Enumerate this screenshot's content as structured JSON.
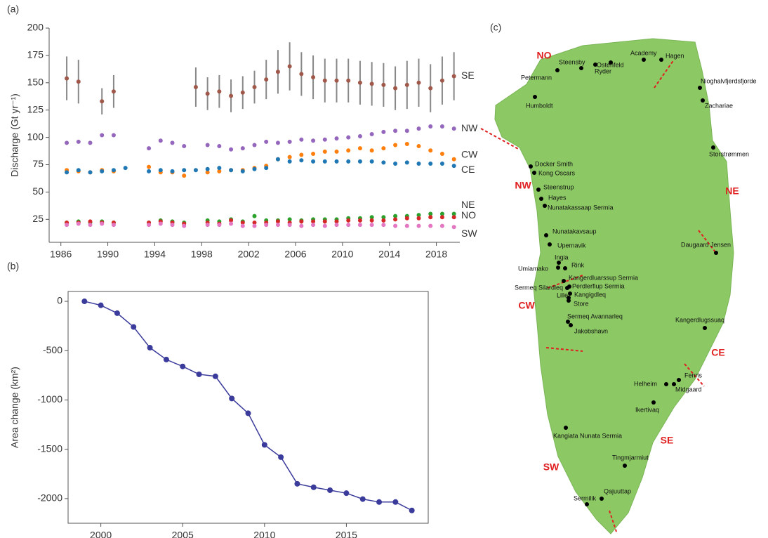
{
  "chart_data": [
    {
      "type": "scatter",
      "panel": "(a)",
      "y_label": "Discharge (Gt yr⁻¹)",
      "x": [
        1986.5,
        1987.5,
        1988.5,
        1989.5,
        1990.5,
        1991.5,
        1993.5,
        1994.5,
        1995.5,
        1996.5,
        1997.5,
        1998.5,
        1999.5,
        2000.5,
        2001.5,
        2002.5,
        2003.5,
        2004.5,
        2005.5,
        2006.5,
        2007.5,
        2008.5,
        2009.5,
        2010.5,
        2011.5,
        2012.5,
        2013.5,
        2014.5,
        2015.5,
        2016.5,
        2017.5,
        2018.5,
        2019.5
      ],
      "series": [
        {
          "name": "SE",
          "color": "#a0584a",
          "values": [
            154,
            151,
            null,
            133,
            142,
            null,
            null,
            null,
            null,
            null,
            146,
            140,
            142,
            138,
            141,
            146,
            153,
            160,
            165,
            158,
            155,
            152,
            152,
            152,
            150,
            149,
            148,
            145,
            148,
            150,
            145,
            152,
            156
          ],
          "errors": [
            20,
            20,
            null,
            12,
            15,
            null,
            null,
            null,
            null,
            null,
            18,
            15,
            15,
            15,
            15,
            15,
            18,
            20,
            22,
            20,
            20,
            20,
            20,
            20,
            20,
            20,
            20,
            20,
            22,
            22,
            22,
            22,
            22
          ]
        },
        {
          "name": "NW",
          "color": "#9467bd",
          "values": [
            95,
            96,
            95,
            102,
            102,
            null,
            90,
            97,
            95,
            92,
            null,
            93,
            92,
            89,
            90,
            93,
            96,
            95,
            96,
            98,
            97,
            98,
            99,
            100,
            101,
            103,
            105,
            106,
            106,
            108,
            110,
            110,
            108
          ]
        },
        {
          "name": "CW",
          "color": "#ff7f0e",
          "values": [
            70,
            69,
            68,
            70,
            69,
            null,
            73,
            68,
            68,
            65,
            null,
            68,
            69,
            70,
            70,
            72,
            74,
            80,
            82,
            84,
            85,
            87,
            87,
            88,
            90,
            88,
            90,
            93,
            94,
            92,
            88,
            85,
            80
          ]
        },
        {
          "name": "CE",
          "color": "#1f77b4",
          "values": [
            68,
            70,
            68,
            69,
            70,
            72,
            69,
            70,
            69,
            70,
            70,
            71,
            72,
            70,
            69,
            71,
            72,
            80,
            78,
            79,
            78,
            78,
            78,
            78,
            78,
            78,
            77,
            76,
            77,
            76,
            76,
            76,
            74
          ]
        },
        {
          "name": "NE",
          "color": "#2ca02c",
          "values": [
            22,
            23,
            22,
            23,
            22,
            null,
            22,
            24,
            23,
            22,
            null,
            24,
            23,
            25,
            23,
            28,
            24,
            24,
            25,
            24,
            25,
            25,
            25,
            26,
            26,
            27,
            27,
            28,
            28,
            29,
            30,
            30,
            30
          ]
        },
        {
          "name": "NO",
          "color": "#d62728",
          "values": [
            22,
            22,
            23,
            22,
            22,
            null,
            22,
            23,
            22,
            21,
            null,
            22,
            21,
            24,
            22,
            22,
            22,
            23,
            22,
            23,
            23,
            23,
            23,
            24,
            24,
            24,
            24,
            25,
            26,
            26,
            27,
            27,
            27
          ]
        },
        {
          "name": "SW",
          "color": "#e377c2",
          "values": [
            20,
            21,
            20,
            21,
            20,
            null,
            20,
            21,
            20,
            19,
            null,
            20,
            20,
            21,
            19,
            19,
            20,
            20,
            20,
            19,
            20,
            19,
            20,
            20,
            20,
            20,
            20,
            19,
            19,
            19,
            19,
            19,
            18
          ]
        }
      ],
      "xlim": [
        1985,
        2020
      ],
      "ylim": [
        4,
        200
      ],
      "xticks": [
        1986,
        1990,
        1994,
        1998,
        2002,
        2006,
        2010,
        2014,
        2018
      ],
      "yticks": [
        25,
        50,
        75,
        100,
        125,
        150,
        175,
        200
      ]
    },
    {
      "type": "line",
      "panel": "(b)",
      "y_label": "Area change (km²)",
      "color": "#3b3b9c",
      "x": [
        1999,
        2000,
        2001,
        2002,
        2003,
        2004,
        2005,
        2006,
        2007,
        2008,
        2009,
        2010,
        2011,
        2012,
        2013,
        2014,
        2015,
        2016,
        2017,
        2018,
        2019
      ],
      "values": [
        0,
        -40,
        -120,
        -260,
        -470,
        -590,
        -660,
        -740,
        -760,
        -985,
        -1135,
        -1455,
        -1580,
        -1850,
        -1885,
        -1915,
        -1945,
        -2005,
        -2035,
        -2035,
        -2120
      ],
      "xlim": [
        1998,
        2020
      ],
      "ylim": [
        -2250,
        100
      ],
      "xticks": [
        2000,
        2005,
        2010,
        2015
      ],
      "yticks": [
        0,
        -500,
        -1000,
        -1500,
        -2000
      ]
    }
  ],
  "map": {
    "panel": "(c)",
    "regions": [
      "NO",
      "NE",
      "NW",
      "CW",
      "CE",
      "SE",
      "SW"
    ],
    "glaciers": [
      "Petermann",
      "Steensby",
      "Ryder",
      "Ostenfeld",
      "Academy",
      "Hagen",
      "Nioghalvfjerdsfjorde",
      "Zachariae",
      "Humboldt",
      "Storstrømmen",
      "Docker Smith",
      "Kong Oscars",
      "Steenstrup",
      "Hayes",
      "Nunatakassaap Sermia",
      "Nunatakavsaup",
      "Upernavik",
      "Daugaard Jensen",
      "Ingia",
      "Umiamako",
      "Rink",
      "Kangerdluarssup Sermia",
      "Sermeq Silardleq",
      "Perdlerfiup Sermia",
      "Kangigdleq",
      "Lille",
      "Store",
      "Sermeq Avannarleq",
      "Jakobshavn",
      "Kangerdlugssuaq",
      "Fenris",
      "Helheim",
      "Midgaard",
      "Ikertivaq",
      "Kangiata Nunata Sermia",
      "Tingmjarmiut",
      "Qajuuttap",
      "Sermilik"
    ]
  }
}
